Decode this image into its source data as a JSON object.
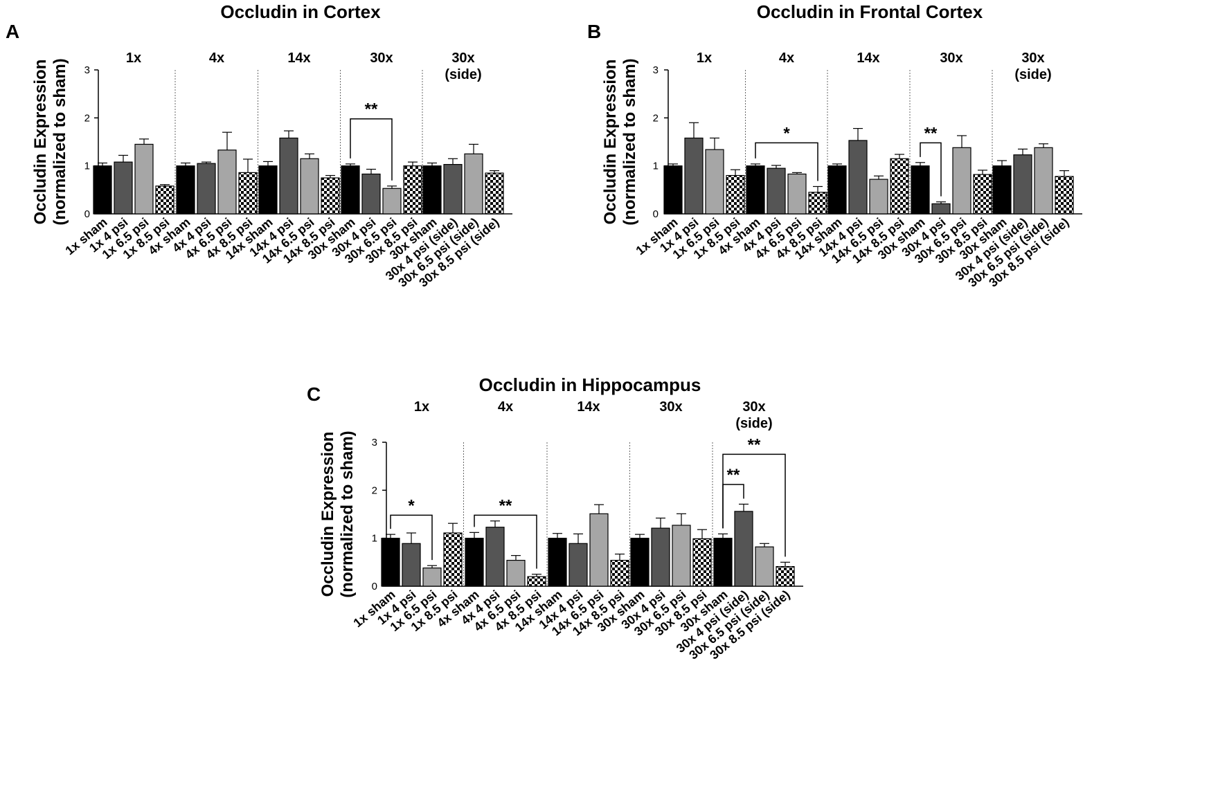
{
  "figure": {
    "panels": [
      {
        "letter": "A"
      },
      {
        "letter": "B"
      },
      {
        "letter": "C"
      }
    ]
  },
  "chart_data": [
    {
      "type": "bar",
      "panel": "A",
      "title": "Occludin in Cortex",
      "ylabel": "Occludin Expression\n(normalized to sham)",
      "ylim": [
        0,
        3
      ],
      "yticks": [
        0,
        1,
        2,
        3
      ],
      "groups": [
        {
          "label": "1x",
          "categories": [
            "1x sham",
            "1x 4 psi",
            "1x 6.5 psi",
            "1x 8.5 psi"
          ],
          "values": [
            1.0,
            1.08,
            1.45,
            0.58
          ],
          "errors": [
            0.06,
            0.14,
            0.11,
            0.03
          ]
        },
        {
          "label": "4x",
          "categories": [
            "4x sham",
            "4x 4 psi",
            "4x 6.5 psi",
            "4x 8.5 psi"
          ],
          "values": [
            1.0,
            1.05,
            1.33,
            0.86
          ],
          "errors": [
            0.06,
            0.03,
            0.37,
            0.28
          ]
        },
        {
          "label": "14x",
          "categories": [
            "14x sham",
            "14x 4 psi",
            "14x 6.5 psi",
            "14x 8.5 psi"
          ],
          "values": [
            1.0,
            1.58,
            1.15,
            0.75
          ],
          "errors": [
            0.09,
            0.15,
            0.1,
            0.05
          ]
        },
        {
          "label": "30x",
          "categories": [
            "30x sham",
            "30x 4 psi",
            "30x 6.5 psi",
            "30x 8.5 psi"
          ],
          "values": [
            1.0,
            0.83,
            0.53,
            1.0
          ],
          "errors": [
            0.04,
            0.1,
            0.05,
            0.08
          ]
        },
        {
          "label": "30x\n(side)",
          "categories": [
            "30x sham",
            "30x 4 psi (side)",
            "30x 6.5 psi (side)",
            "30x 8.5 psi (side)"
          ],
          "values": [
            1.0,
            1.03,
            1.25,
            0.85
          ],
          "errors": [
            0.06,
            0.12,
            0.2,
            0.05
          ]
        }
      ],
      "annotations": [
        {
          "text": "**",
          "group": 3,
          "from_bar": 0,
          "to_bar": 2,
          "level": 1.98
        }
      ]
    },
    {
      "type": "bar",
      "panel": "B",
      "title": "Occludin in Frontal Cortex",
      "ylabel": "Occludin Expression\n(normalized to sham)",
      "ylim": [
        0,
        3
      ],
      "yticks": [
        0,
        1,
        2,
        3
      ],
      "groups": [
        {
          "label": "1x",
          "categories": [
            "1x sham",
            "1x 4 psi",
            "1x 6.5 psi",
            "1x 8.5 psi"
          ],
          "values": [
            1.0,
            1.58,
            1.34,
            0.8
          ],
          "errors": [
            0.04,
            0.32,
            0.24,
            0.12
          ]
        },
        {
          "label": "4x",
          "categories": [
            "4x sham",
            "4x 4 psi",
            "4x 6.5 psi",
            "4x 8.5 psi"
          ],
          "values": [
            1.0,
            0.95,
            0.83,
            0.45
          ],
          "errors": [
            0.04,
            0.06,
            0.03,
            0.12
          ]
        },
        {
          "label": "14x",
          "categories": [
            "14x sham",
            "14x 4 psi",
            "14x 6.5 psi",
            "14x 8.5 psi"
          ],
          "values": [
            1.0,
            1.53,
            0.72,
            1.15
          ],
          "errors": [
            0.04,
            0.25,
            0.07,
            0.09
          ]
        },
        {
          "label": "30x",
          "categories": [
            "30x sham",
            "30x 4 psi",
            "30x 6.5 psi",
            "30x 8.5 psi"
          ],
          "values": [
            1.0,
            0.21,
            1.38,
            0.82
          ],
          "errors": [
            0.07,
            0.04,
            0.25,
            0.09
          ]
        },
        {
          "label": "30x\n(side)",
          "categories": [
            "30x sham",
            "30x 4 psi (side)",
            "30x 6.5 psi (side)",
            "30x 8.5 psi (side)"
          ],
          "values": [
            1.0,
            1.23,
            1.38,
            0.78
          ],
          "errors": [
            0.11,
            0.12,
            0.08,
            0.12
          ]
        }
      ],
      "annotations": [
        {
          "text": "*",
          "group": 1,
          "from_bar": 0,
          "to_bar": 3,
          "level": 1.48
        },
        {
          "text": "**",
          "group": 3,
          "from_bar": 0,
          "to_bar": 1,
          "level": 1.48
        }
      ]
    },
    {
      "type": "bar",
      "panel": "C",
      "title": "Occludin in Hippocampus",
      "ylabel": "Occludin Expression\n(normalized to sham)",
      "ylim": [
        0,
        3
      ],
      "yticks": [
        0,
        1,
        2,
        3
      ],
      "groups": [
        {
          "label": "1x",
          "categories": [
            "1x sham",
            "1x 4 psi",
            "1x 6.5 psi",
            "1x 8.5 psi"
          ],
          "values": [
            1.0,
            0.89,
            0.38,
            1.11
          ],
          "errors": [
            0.08,
            0.22,
            0.05,
            0.2
          ]
        },
        {
          "label": "4x",
          "categories": [
            "4x sham",
            "4x 4 psi",
            "4x 6.5 psi",
            "4x 8.5 psi"
          ],
          "values": [
            1.0,
            1.23,
            0.54,
            0.2
          ],
          "errors": [
            0.12,
            0.13,
            0.1,
            0.05
          ]
        },
        {
          "label": "14x",
          "categories": [
            "14x sham",
            "14x 4 psi",
            "14x 6.5 psi",
            "14x 8.5 psi"
          ],
          "values": [
            1.0,
            0.89,
            1.51,
            0.54
          ],
          "errors": [
            0.1,
            0.2,
            0.19,
            0.13
          ]
        },
        {
          "label": "30x",
          "categories": [
            "30x sham",
            "30x 4 psi",
            "30x 6.5 psi",
            "30x 8.5 psi"
          ],
          "values": [
            1.0,
            1.21,
            1.27,
            0.99
          ],
          "errors": [
            0.08,
            0.21,
            0.24,
            0.19
          ]
        },
        {
          "label": "30x\n(side)",
          "categories": [
            "30x sham",
            "30x 4 psi (side)",
            "30x 6.5 psi (side)",
            "30x 8.5 psi (side)"
          ],
          "values": [
            1.0,
            1.56,
            0.82,
            0.41
          ],
          "errors": [
            0.09,
            0.15,
            0.07,
            0.09
          ]
        }
      ],
      "annotations": [
        {
          "text": "*",
          "group": 0,
          "from_bar": 0,
          "to_bar": 2,
          "level": 1.48
        },
        {
          "text": "**",
          "group": 1,
          "from_bar": 0,
          "to_bar": 3,
          "level": 1.48
        },
        {
          "text": "**",
          "group": 4,
          "from_bar": 0,
          "to_bar": 1,
          "level": 2.12
        },
        {
          "text": "**",
          "group": 4,
          "from_bar": 0,
          "to_bar": 3,
          "level": 2.75
        }
      ]
    }
  ]
}
